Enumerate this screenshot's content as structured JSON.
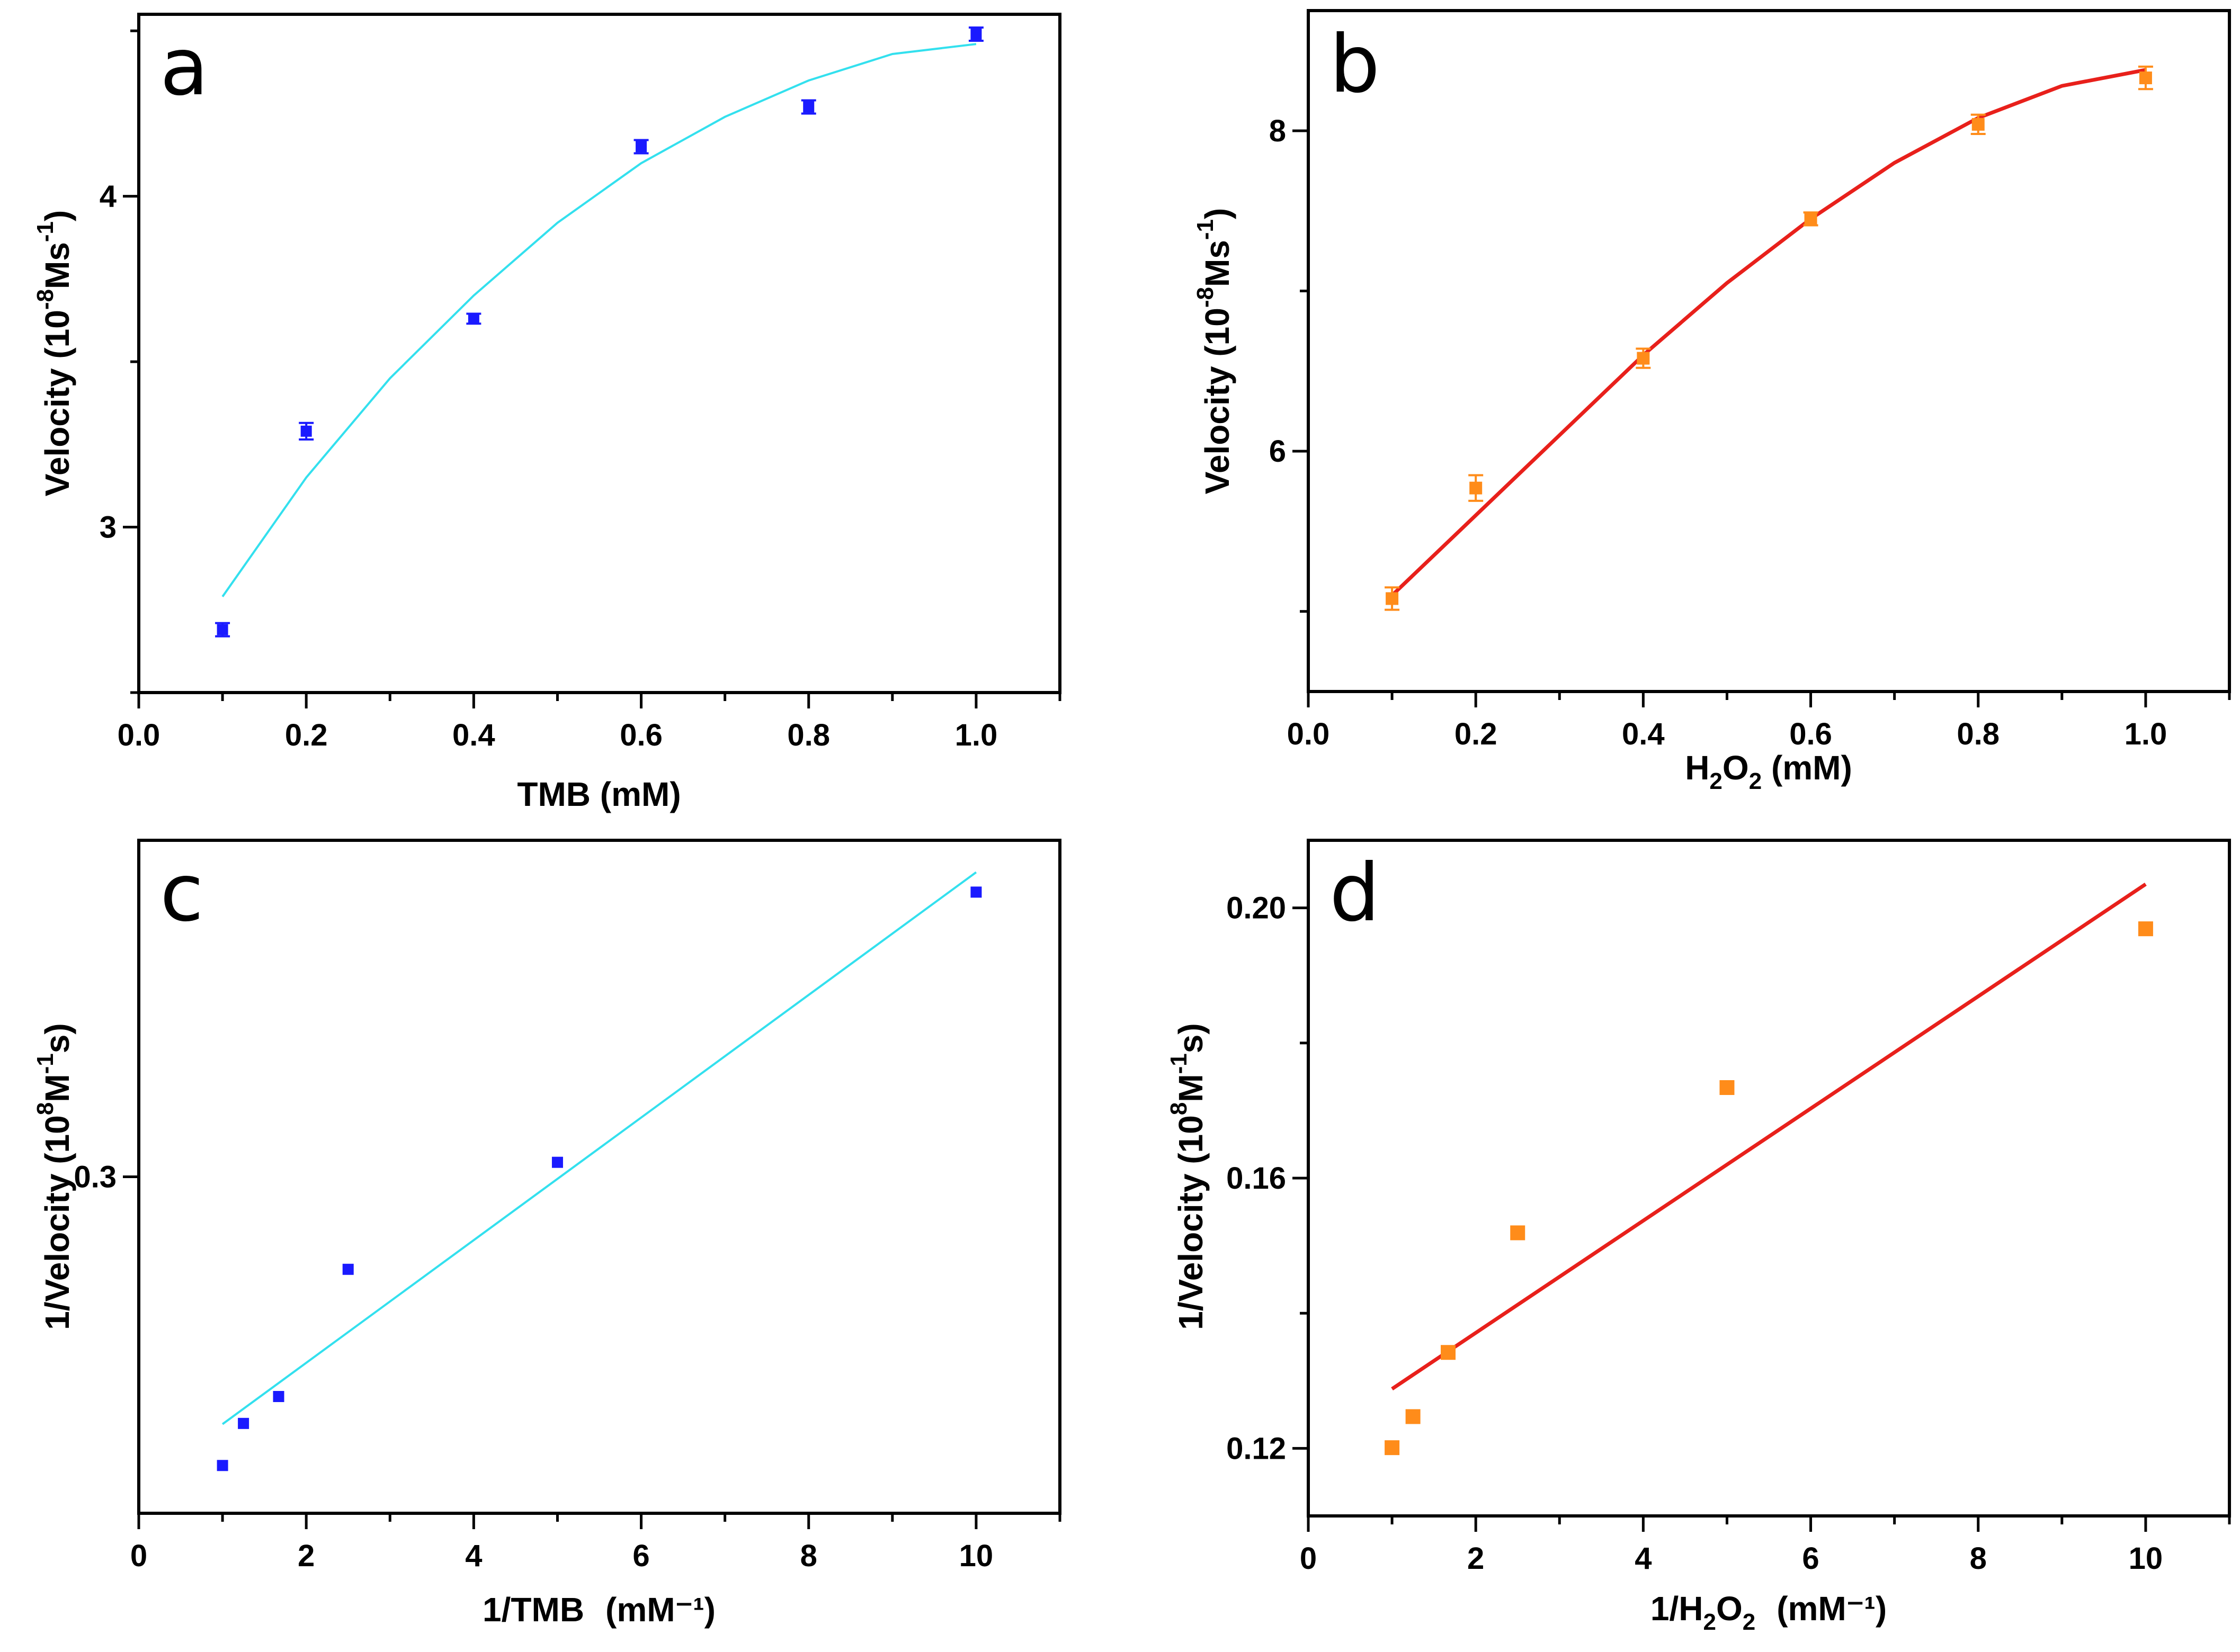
{
  "chart_data": [
    {
      "id": "a",
      "type": "scatter",
      "panel_label": "a",
      "xlabel": "TMB (mM)",
      "ylabel": {
        "main": "Velocity (10",
        "sup1": "-8",
        "mid": "Ms",
        "sup2": "-1",
        "end": ")"
      },
      "xlim": [
        0,
        1.1
      ],
      "ylim": [
        2.5,
        4.55
      ],
      "x_ticks": [
        0.0,
        0.2,
        0.4,
        0.6,
        0.8,
        1.0
      ],
      "x_tick_labels": [
        "0.0",
        "0.2",
        "0.4",
        "0.6",
        "0.8",
        "1.0"
      ],
      "y_ticks": [
        3,
        4
      ],
      "y_tick_labels": [
        "3",
        "4"
      ],
      "marker_color": "#1a1aff",
      "line_color": "#33e0ee",
      "error_bars": true,
      "series": [
        {
          "name": "data",
          "x": [
            0.1,
            0.2,
            0.4,
            0.6,
            0.8,
            1.0
          ],
          "y": [
            2.69,
            3.29,
            3.63,
            4.15,
            4.27,
            4.49
          ],
          "err": [
            0.02,
            0.025,
            0.015,
            0.02,
            0.02,
            0.02
          ]
        },
        {
          "name": "fit",
          "curve": [
            [
              0.1,
              2.79
            ],
            [
              0.2,
              3.15
            ],
            [
              0.3,
              3.45
            ],
            [
              0.4,
              3.7
            ],
            [
              0.5,
              3.92
            ],
            [
              0.6,
              4.1
            ],
            [
              0.7,
              4.24
            ],
            [
              0.8,
              4.35
            ],
            [
              0.9,
              4.43
            ],
            [
              1.0,
              4.46
            ]
          ]
        }
      ]
    },
    {
      "id": "b",
      "type": "scatter",
      "panel_label": "b",
      "xlabel": {
        "main": "H",
        "sub1": "2",
        "mid": "O",
        "sub2": "2",
        "end": " (mM)"
      },
      "ylabel": {
        "main": "Velocity (10",
        "sup1": "-8",
        "mid": "Ms",
        "sup2": "-1",
        "end": ")"
      },
      "xlim": [
        0,
        1.1
      ],
      "ylim": [
        4.5,
        8.75
      ],
      "x_ticks": [
        0.0,
        0.2,
        0.4,
        0.6,
        0.8,
        1.0
      ],
      "x_tick_labels": [
        "0.0",
        "0.2",
        "0.4",
        "0.6",
        "0.8",
        "1.0"
      ],
      "y_ticks": [
        6,
        8
      ],
      "y_tick_labels": [
        "6",
        "8"
      ],
      "marker_color": "#ff8c1a",
      "line_color": "#e8201b",
      "error_bars": true,
      "series": [
        {
          "name": "data",
          "x": [
            0.1,
            0.2,
            0.4,
            0.6,
            0.8,
            1.0
          ],
          "y": [
            5.08,
            5.77,
            6.58,
            7.45,
            8.04,
            8.33
          ],
          "err": [
            0.07,
            0.08,
            0.06,
            0.04,
            0.06,
            0.07
          ]
        },
        {
          "name": "fit",
          "curve": [
            [
              0.1,
              5.1
            ],
            [
              0.2,
              5.6
            ],
            [
              0.3,
              6.1
            ],
            [
              0.4,
              6.6
            ],
            [
              0.5,
              7.05
            ],
            [
              0.6,
              7.45
            ],
            [
              0.7,
              7.8
            ],
            [
              0.8,
              8.08
            ],
            [
              0.9,
              8.28
            ],
            [
              1.0,
              8.38
            ]
          ]
        }
      ]
    },
    {
      "id": "c",
      "type": "scatter",
      "panel_label": "c",
      "xlabel": {
        "main": "1/TMB",
        "unit": "(mM⁻¹)"
      },
      "ylabel": {
        "main": "1/Velocity (10",
        "sup1": "8",
        "mid": "M",
        "sup2": "-1",
        "end": "s)"
      },
      "xlim": [
        0,
        11
      ],
      "ylim": [
        0.2,
        0.4
      ],
      "x_ticks": [
        0,
        2,
        4,
        6,
        8,
        10
      ],
      "x_tick_labels": [
        "0",
        "2",
        "4",
        "6",
        "8",
        "10"
      ],
      "y_ticks": [
        0.3
      ],
      "y_tick_labels": [
        "0.3"
      ],
      "marker_color": "#1a1aff",
      "line_color": "#33e0ee",
      "error_bars": false,
      "series": [
        {
          "name": "data",
          "x": [
            1.0,
            1.25,
            1.67,
            2.5,
            5.0,
            10.0
          ],
          "y": [
            0.2142,
            0.2267,
            0.2347,
            0.2725,
            0.3043,
            0.3846
          ]
        },
        {
          "name": "fit",
          "curve": [
            [
              1.0,
              0.2265
            ],
            [
              10.0,
              0.3905
            ]
          ]
        }
      ]
    },
    {
      "id": "d",
      "type": "scatter",
      "panel_label": "d",
      "xlabel": {
        "main": "1/H",
        "sub1": "2",
        "mid": "O",
        "sub2": "2",
        "unit": "(mM⁻¹)"
      },
      "ylabel": {
        "main": "1/Velocity (10",
        "sup1": "8",
        "mid": "M",
        "sup2": "-1",
        "end": "s)"
      },
      "xlim": [
        0,
        11
      ],
      "ylim": [
        0.11,
        0.21
      ],
      "x_ticks": [
        0,
        2,
        4,
        6,
        8,
        10
      ],
      "x_tick_labels": [
        "0",
        "2",
        "4",
        "6",
        "8",
        "10"
      ],
      "y_ticks": [
        0.12,
        0.16,
        0.2
      ],
      "y_tick_labels": [
        "0.12",
        "0.16",
        "0.20"
      ],
      "marker_color": "#ff8c1a",
      "line_color": "#e8201b",
      "error_bars": false,
      "series": [
        {
          "name": "data",
          "x": [
            1.0,
            1.25,
            1.67,
            2.5,
            5.0,
            10.0
          ],
          "y": [
            0.1201,
            0.1247,
            0.1342,
            0.1519,
            0.1734,
            0.1969
          ]
        },
        {
          "name": "fit",
          "curve": [
            [
              1.0,
              0.1288
            ],
            [
              10.0,
              0.2035
            ]
          ]
        }
      ]
    }
  ]
}
